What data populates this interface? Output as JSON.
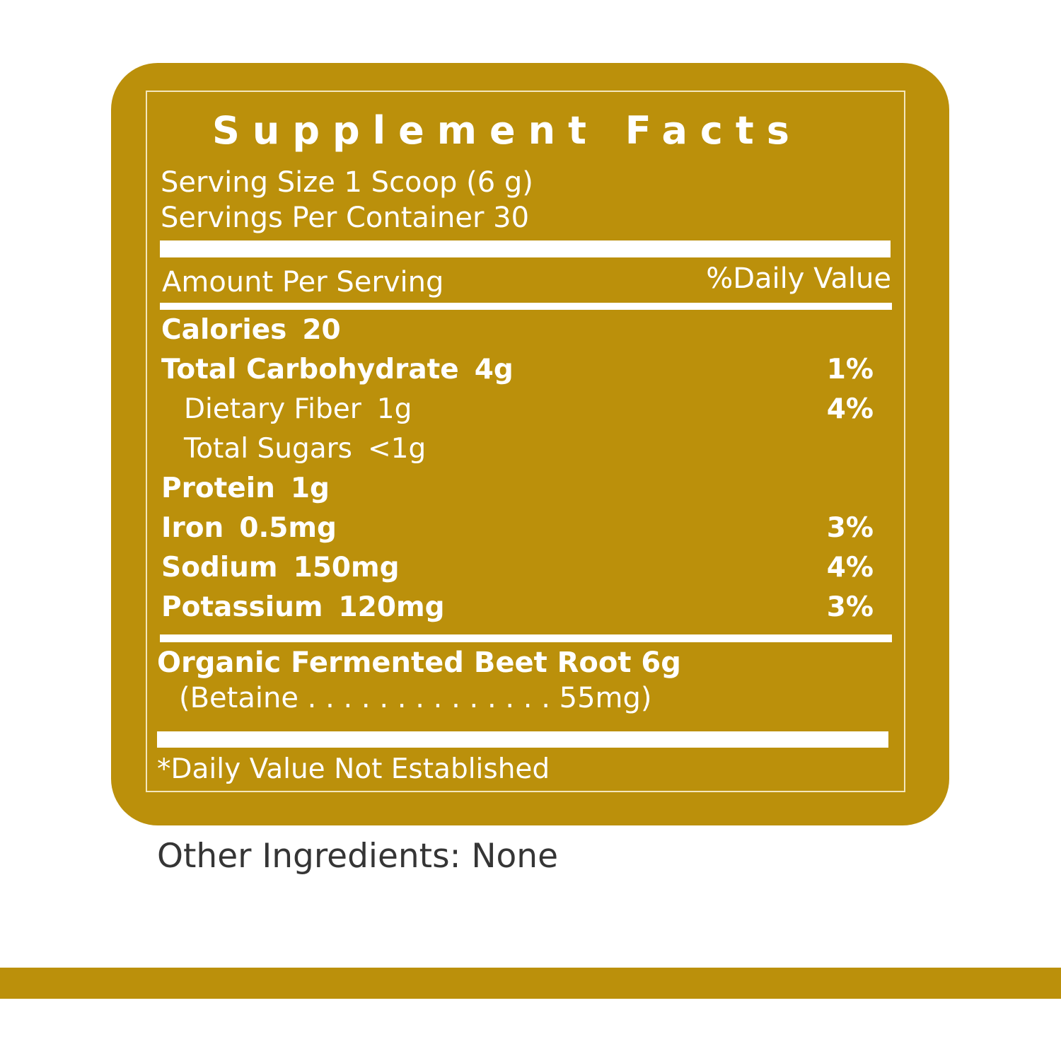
{
  "label": {
    "title": "Supplement Facts",
    "serving_size": "Serving Size 1 Scoop (6 g)",
    "servings_per_container": "Servings Per Container 30",
    "amount_per_serving": "Amount Per Serving",
    "daily_value_header": "%Daily Value",
    "nutrients": [
      {
        "name": "Calories",
        "amount": "20",
        "dv": ""
      },
      {
        "name": "Total Carbohydrate",
        "amount": "4g",
        "dv": "1%"
      },
      {
        "name": "Dietary Fiber",
        "amount": "1g",
        "dv": "4%"
      },
      {
        "name": "Total Sugars",
        "amount": "<1g",
        "dv": ""
      },
      {
        "name": "Protein",
        "amount": "1g",
        "dv": ""
      },
      {
        "name": "Iron",
        "amount": "0.5mg",
        "dv": "3%"
      },
      {
        "name": "Sodium",
        "amount": "150mg",
        "dv": "4%"
      },
      {
        "name": "Potassium",
        "amount": "120mg",
        "dv": "3%"
      }
    ],
    "ingredient": "Organic Fermented Beet Root  6g",
    "ingredient_sub": "(Betaine . . . . . . . . . . . . . . 55mg)",
    "footnote": "*Daily Value Not Established"
  },
  "other_ingredients": "Other Ingredients: None",
  "colors": {
    "gold": "#bb900b",
    "text_dark": "#353535"
  }
}
